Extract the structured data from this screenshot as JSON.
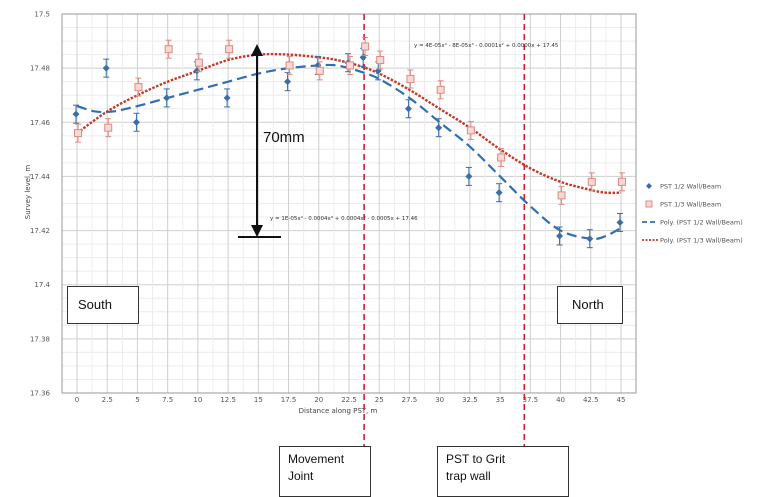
{
  "chart_data": {
    "type": "scatter",
    "title": "",
    "xlabel": "Distance along PST, m",
    "ylabel": "Survey level, m",
    "x_tick_labels": [
      "0",
      "2.5",
      "5",
      "7.5",
      "10",
      "12.5",
      "15",
      "17.5",
      "20",
      "22.5",
      "25",
      "27.5",
      "30",
      "32.5",
      "35",
      "37.5",
      "40",
      "42.5",
      "45"
    ],
    "y_tick_labels": [
      "17.5",
      "17.48",
      "17.46",
      "17.44",
      "17.42",
      "17.4",
      "17.38",
      "17.36"
    ],
    "ylim": [
      17.36,
      17.5
    ],
    "grid": true,
    "legend_position": "right",
    "series": [
      {
        "name": "PST 1/2 Wall/Beam",
        "marker": "diamond",
        "color": "#3a6ea5",
        "values": [
          17.463,
          17.48,
          17.46,
          17.469,
          17.479,
          17.469,
          17.475,
          17.481,
          17.482,
          17.484,
          17.479,
          17.465,
          17.458,
          17.44,
          17.434,
          17.418,
          17.417,
          17.423
        ]
      },
      {
        "name": "PST 1/3 Wall/Beam",
        "marker": "square",
        "color": "#e08a80",
        "values": [
          17.456,
          17.458,
          17.473,
          17.487,
          17.482,
          17.487,
          17.481,
          17.479,
          17.481,
          17.488,
          17.483,
          17.476,
          17.472,
          17.457,
          17.447,
          17.433,
          17.438,
          17.438
        ]
      }
    ],
    "point_x_index": [
      0,
      1,
      2,
      3,
      4,
      5,
      7,
      8,
      9,
      9.5,
      10,
      11,
      12,
      13,
      14,
      16,
      17,
      18
    ],
    "trend_lines": [
      {
        "name": "Poly. (PST 1/2 Wall/Beam)",
        "style": "dashed",
        "color": "#2f6fb5",
        "equation": "y = 1E-05x⁴ - 0.0004x³ + 0.0004x² - 0.0005x + 17.46",
        "x_index": [
          0,
          0.6,
          1.2,
          2,
          3,
          4,
          5,
          6,
          7,
          8,
          8.6,
          9.3,
          10,
          11,
          12,
          13,
          14,
          15,
          16,
          17,
          17.5,
          18
        ],
        "values": [
          17.466,
          17.464,
          17.464,
          17.466,
          17.469,
          17.472,
          17.475,
          17.478,
          17.48,
          17.481,
          17.481,
          17.479,
          17.476,
          17.469,
          17.46,
          17.451,
          17.44,
          17.429,
          17.42,
          17.417,
          17.418,
          17.421
        ]
      },
      {
        "name": "Poly. (PST 1/3 Wall/Beam)",
        "style": "dotted",
        "color": "#c0392b",
        "equation": "y = 4E-05x⁴ - 8E-05x³ - 0.0001x² + 0.0000x + 17.45",
        "x_index": [
          0,
          1,
          2,
          3,
          4,
          5,
          6,
          7,
          8,
          8.6,
          9.3,
          10,
          11,
          12,
          13,
          14,
          15,
          16,
          17,
          17.5,
          18
        ],
        "values": [
          17.456,
          17.464,
          17.47,
          17.475,
          17.479,
          17.483,
          17.485,
          17.485,
          17.484,
          17.483,
          17.481,
          17.478,
          17.472,
          17.465,
          17.458,
          17.45,
          17.443,
          17.438,
          17.435,
          17.434,
          17.434
        ]
      }
    ],
    "vertical_markers": [
      {
        "label_line1": "Movement",
        "label_line2": "Joint",
        "x_index": 9.5,
        "color": "#d0202a"
      },
      {
        "label_line1": "PST to Grit",
        "label_line2": "trap wall",
        "x_index": 14.8,
        "color": "#d0202a"
      }
    ],
    "annotations": {
      "deflection": "70mm",
      "region_left": "South",
      "region_right": "North"
    }
  }
}
